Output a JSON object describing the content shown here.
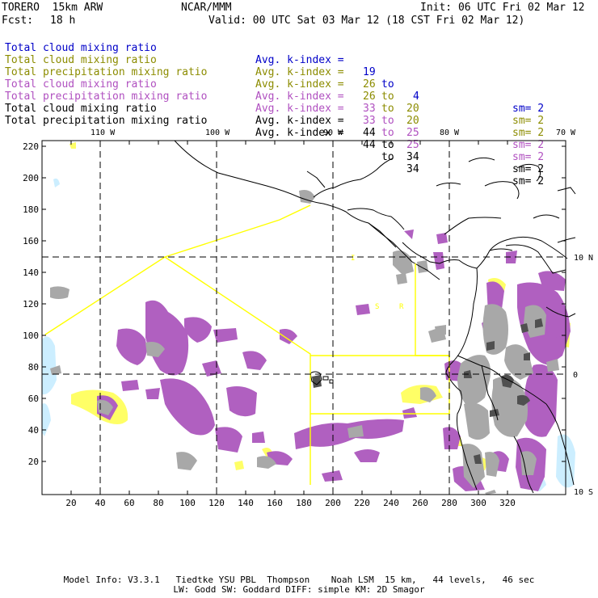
{
  "header": {
    "model": "TORERO  15km ARW",
    "center": "NCAR/MMM",
    "init": "Init: 06 UTC Fri 02 Mar 12",
    "fcst_label": "Fcst:",
    "fcst_hours": "18 h",
    "valid": "Valid: 00 UTC Sat 03 Mar 12 (18 CST Fri 02 Mar 12)"
  },
  "fields": [
    {
      "name": "Total cloud mixing ratio",
      "desc": "Avg. k-index =",
      "a": "19",
      "to": "to",
      "b": "4",
      "sm": "sm= 2",
      "color": "#0000c8"
    },
    {
      "name": "Total cloud mixing ratio",
      "desc": "Avg. k-index =",
      "a": "26",
      "to": "to",
      "b": "20",
      "sm": "sm= 2",
      "color": "#8c8c00"
    },
    {
      "name": "Total precipitation mixing ratio",
      "desc": "Avg. k-index =",
      "a": "26",
      "to": "to",
      "b": "20",
      "sm": "sm= 2",
      "color": "#8c8c00"
    },
    {
      "name": "Total cloud mixing ratio",
      "desc": "Avg. k-index =",
      "a": "33",
      "to": "to",
      "b": "25",
      "sm": "sm= 2",
      "color": "#b050c0"
    },
    {
      "name": "Total precipitation mixing ratio",
      "desc": "Avg. k-index =",
      "a": "33",
      "to": "to",
      "b": "25",
      "sm": "sm= 2",
      "color": "#b050c0"
    },
    {
      "name": "Total cloud mixing ratio",
      "desc": "Avg. k-index =",
      "a": "44",
      "to": "to",
      "b": "34",
      "sm": "sm= 2",
      "color": "#000000"
    },
    {
      "name": "Total precipitation mixing ratio",
      "desc": "Avg. k-index =",
      "a": "44",
      "to": "to",
      "b": "34",
      "sm": "sm= 2",
      "color": "#000000"
    }
  ],
  "map": {
    "lon_labels": [
      "110 W",
      "100 W",
      "90 W",
      "80 W",
      "70 W"
    ],
    "lat_labels": [
      "10 N",
      "0",
      "10 S"
    ],
    "x_ticks": [
      "20",
      "40",
      "60",
      "80",
      "100",
      "120",
      "140",
      "160",
      "180",
      "200",
      "220",
      "240",
      "260",
      "280",
      "300",
      "320"
    ],
    "y_ticks": [
      "220",
      "200",
      "180",
      "160",
      "140",
      "120",
      "100",
      "80",
      "60",
      "40",
      "20"
    ],
    "colors": {
      "cloud_light": "#cceeff",
      "cloud_yellow": "#ffff66",
      "precip_purple": "#b060c0",
      "cloud_gray": "#a8a8a8",
      "cloud_dark": "#505050",
      "box_lines": "#ffff00",
      "coast": "#000000"
    }
  },
  "footer": {
    "line1": "Model Info: V3.3.1   Tiedtke YSU PBL  Thompson    Noah LSM  15 km,   44 levels,   46 sec",
    "line2": "LW: Godd SW: Goddard DIFF: simple KM: 2D Smagor"
  }
}
